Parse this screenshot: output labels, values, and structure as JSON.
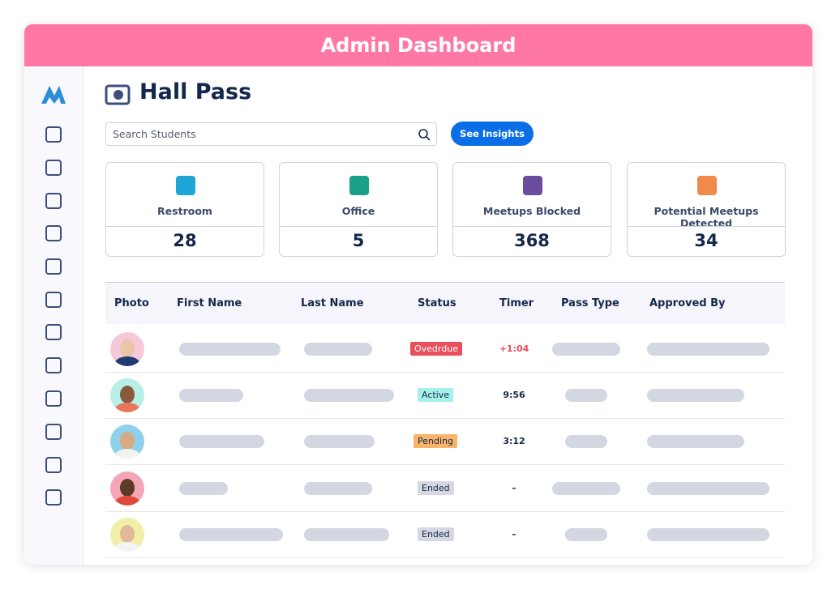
{
  "header": {
    "title": "Admin Dashboard"
  },
  "page": {
    "title": "Hall Pass",
    "search_placeholder": "Search Students",
    "button": "See Insights"
  },
  "stats": [
    {
      "label": "Restroom",
      "value": 28
    },
    {
      "label": "Office",
      "value": 5
    },
    {
      "label": "Meetups Blocked",
      "value": 368
    },
    {
      "label": "Potential Meetups Detected",
      "value": 34
    }
  ],
  "table": {
    "columns": [
      "Photo",
      "First Name",
      "Last Name",
      "Status",
      "Timer",
      "Pass Type",
      "Approved By"
    ],
    "rows": [
      {
        "status": "Ovedrdue",
        "timer": "+1:04"
      },
      {
        "status": "Active",
        "timer": "9:56"
      },
      {
        "status": "Pending",
        "timer": "3:12"
      },
      {
        "status": "Ended",
        "timer": "–"
      },
      {
        "status": "Ended",
        "timer": "–"
      }
    ]
  }
}
